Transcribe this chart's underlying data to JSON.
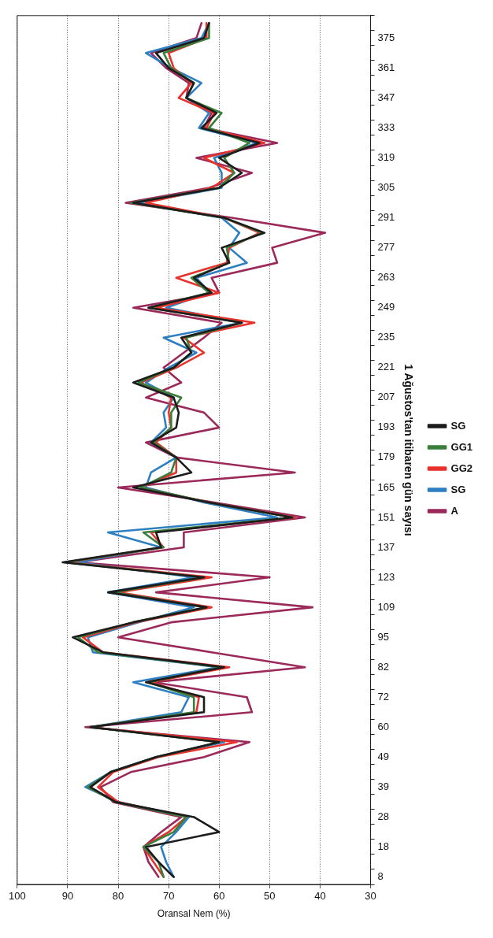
{
  "chart_data": {
    "type": "line",
    "orientation": "horizontal",
    "xlabel": "Oransal Nem (%)",
    "ylabel": "1 Ağustos'tan itibaren gün sayısı",
    "categories": [
      null,
      "375",
      null,
      "361",
      null,
      "347",
      null,
      "333",
      null,
      "319",
      null,
      "305",
      null,
      "291",
      null,
      "277",
      null,
      "263",
      null,
      "249",
      null,
      "235",
      null,
      "221",
      null,
      "207",
      null,
      "193",
      null,
      "179",
      null,
      "165",
      null,
      "151",
      null,
      "137",
      null,
      "123",
      null,
      "109",
      null,
      "95",
      null,
      "82",
      null,
      "72",
      null,
      "60",
      null,
      "49",
      null,
      "39",
      null,
      "28",
      null,
      "18",
      null,
      "8"
    ],
    "xlim": [
      100,
      30
    ],
    "xticks": [
      100,
      90,
      80,
      70,
      60,
      50,
      40,
      30
    ],
    "grid": "x",
    "legend": "right",
    "marker": "none",
    "line_style": "solid",
    "series": [
      {
        "name": "SG",
        "color": "#1c1c1c",
        "values": [
          62,
          63,
          72.5,
          70,
          65,
          66.5,
          60.5,
          63.5,
          52,
          60,
          55.5,
          60,
          77,
          59,
          51,
          59.5,
          58,
          65,
          61.5,
          74,
          55.5,
          67.5,
          65.5,
          69,
          77,
          69,
          68,
          68.5,
          73.5,
          68.5,
          65.5,
          77,
          62,
          45.5,
          72.5,
          71.5,
          91,
          63,
          82,
          62.5,
          77,
          89,
          83,
          59,
          74.5,
          63,
          63,
          85.5,
          60,
          72.5,
          81.5,
          85.5,
          80.5,
          65,
          60,
          74.5,
          72,
          69
        ]
      },
      {
        "name": "GG1",
        "color": "#3b7d3b",
        "values": [
          62,
          62,
          71,
          69.5,
          65,
          66.5,
          59.5,
          62,
          54,
          59,
          57,
          60,
          77.5,
          59,
          51.5,
          58.5,
          58,
          65.5,
          62,
          74,
          55.5,
          66.5,
          65.5,
          69,
          76,
          67.5,
          69.5,
          69.5,
          73,
          68.5,
          69.5,
          75.5,
          62,
          45.5,
          75,
          71,
          90.5,
          63,
          81,
          62.5,
          77,
          88,
          84,
          59.5,
          74,
          65,
          65,
          85.5,
          60,
          72.5,
          81.5,
          86,
          80.5,
          66.5,
          69,
          75,
          72,
          71
        ]
      },
      {
        "name": "GG2",
        "color": "#e8322c",
        "values": [
          62.5,
          62.5,
          70,
          69,
          65.5,
          68,
          61,
          62.5,
          51,
          63,
          57,
          61.5,
          74.5,
          59,
          52,
          58,
          58.5,
          68.5,
          60,
          72.5,
          53,
          67,
          63,
          68.5,
          75.5,
          69.5,
          70,
          69.5,
          72.5,
          68.5,
          68.5,
          75.5,
          62,
          45,
          73.5,
          71,
          90,
          61.5,
          80,
          61.5,
          76.5,
          87,
          83,
          58,
          73.5,
          64,
          64.5,
          85.5,
          56.5,
          72,
          81,
          84,
          80,
          66.5,
          70,
          75,
          73,
          71
        ]
      },
      {
        "name": "SG",
        "color": "#2e7fc2",
        "values": [
          62,
          63.5,
          74.5,
          69.5,
          63.5,
          66.5,
          62,
          64,
          52.5,
          61,
          59.5,
          59.5,
          76,
          59.5,
          56,
          58,
          54.5,
          64.5,
          62,
          70.5,
          55.5,
          71,
          64.5,
          70,
          74.5,
          69,
          71,
          70.5,
          73.5,
          68.5,
          73.5,
          74.5,
          63,
          48.5,
          82,
          71.5,
          88,
          65,
          82,
          65,
          76,
          86,
          85,
          60,
          77,
          66,
          67.5,
          85.5,
          59,
          72.5,
          81.5,
          86.5,
          80,
          66,
          68.5,
          71.5,
          70.5,
          69
        ]
      },
      {
        "name": "A",
        "color": "#9b2a5a",
        "values": [
          63.5,
          64.5,
          73.5,
          70.5,
          66,
          66.5,
          61.5,
          63,
          48.5,
          64.5,
          53.5,
          62,
          78.5,
          57.5,
          39,
          49.5,
          48.5,
          61.5,
          60,
          77,
          59.5,
          63,
          67,
          71,
          67.5,
          74.5,
          63,
          60,
          74.5,
          68.5,
          45,
          80,
          61,
          43,
          67,
          67,
          88,
          50,
          72.5,
          41.5,
          69.5,
          80,
          61.5,
          43,
          73,
          54.5,
          53.5,
          86.5,
          54,
          63,
          77.5,
          83.5,
          81,
          67.5,
          71.5,
          75,
          74,
          72
        ]
      }
    ]
  }
}
